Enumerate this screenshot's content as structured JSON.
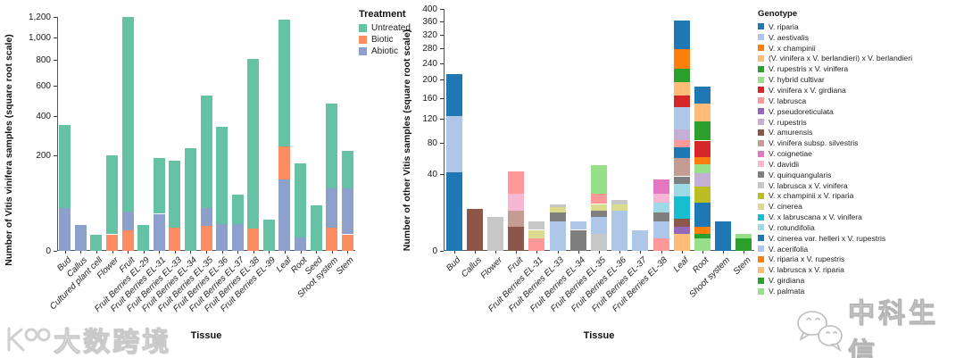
{
  "chart_data": [
    {
      "type": "bar",
      "subtype": "stacked",
      "scale": "sqrt",
      "ylabel": "Number of Vitis vinifera samples (square root scale)",
      "xlabel": "Tissue",
      "y_ticks": [
        0,
        200,
        400,
        600,
        800,
        1000,
        1200
      ],
      "y_tick_labels": [
        "0",
        "200",
        "400",
        "600",
        "800",
        "1,000",
        "1,200"
      ],
      "legend_title": "Treatment",
      "legend_items": [
        {
          "label": "Untreated",
          "color": "#66c2a5"
        },
        {
          "label": "Biotic",
          "color": "#fc8d62"
        },
        {
          "label": "Abiotic",
          "color": "#8da0cb"
        }
      ],
      "colors": {
        "Untreated": "#66c2a5",
        "Biotic": "#fc8d62",
        "Abiotic": "#8da0cb"
      },
      "bars": [
        {
          "label": "Bud",
          "segments": [
            {
              "key": "Abiotic",
              "value": 40
            },
            {
              "key": "Untreated",
              "value": 310
            }
          ]
        },
        {
          "label": "Callus",
          "segments": [
            {
              "key": "Abiotic",
              "value": 15
            }
          ]
        },
        {
          "label": "Cultured plant cell",
          "segments": [
            {
              "key": "Untreated",
              "value": 6
            }
          ]
        },
        {
          "label": "Flower",
          "segments": [
            {
              "key": "Biotic",
              "value": 6
            },
            {
              "key": "Untreated",
              "value": 194
            }
          ]
        },
        {
          "label": "Fruit",
          "segments": [
            {
              "key": "Biotic",
              "value": 9
            },
            {
              "key": "Abiotic",
              "value": 25
            },
            {
              "key": "Untreated",
              "value": 1166
            }
          ]
        },
        {
          "label": "Fruit Berries EL-29",
          "segments": [
            {
              "key": "Untreated",
              "value": 15
            }
          ]
        },
        {
          "label": "Fruit Berries EL-31",
          "segments": [
            {
              "key": "Abiotic",
              "value": 30
            },
            {
              "key": "Untreated",
              "value": 160
            }
          ]
        },
        {
          "label": "Fruit Berries EL-33",
          "segments": [
            {
              "key": "Biotic",
              "value": 12
            },
            {
              "key": "Untreated",
              "value": 168
            }
          ]
        },
        {
          "label": "Fruit Berries EL-34",
          "segments": [
            {
              "key": "Untreated",
              "value": 230
            }
          ]
        },
        {
          "label": "Fruit Berries EL-35",
          "segments": [
            {
              "key": "Biotic",
              "value": 14
            },
            {
              "key": "Abiotic",
              "value": 26
            },
            {
              "key": "Untreated",
              "value": 490
            }
          ]
        },
        {
          "label": "Fruit Berries EL-36",
          "segments": [
            {
              "key": "Abiotic",
              "value": 16
            },
            {
              "key": "Untreated",
              "value": 324
            }
          ]
        },
        {
          "label": "Fruit Berries EL-37",
          "segments": [
            {
              "key": "Abiotic",
              "value": 16
            },
            {
              "key": "Untreated",
              "value": 54
            }
          ]
        },
        {
          "label": "Fruit Berries EL-38",
          "segments": [
            {
              "key": "Biotic",
              "value": 11
            },
            {
              "key": "Untreated",
              "value": 795
            }
          ]
        },
        {
          "label": "Fruit Berries EL-39",
          "segments": [
            {
              "key": "Untreated",
              "value": 21
            }
          ]
        },
        {
          "label": "Leaf",
          "segments": [
            {
              "key": "Abiotic",
              "value": 111
            },
            {
              "key": "Biotic",
              "value": 128
            },
            {
              "key": "Untreated",
              "value": 931
            }
          ]
        },
        {
          "label": "Root",
          "segments": [
            {
              "key": "Abiotic",
              "value": 4
            },
            {
              "key": "Untreated",
              "value": 164
            }
          ]
        },
        {
          "label": "Seed",
          "segments": [
            {
              "key": "Untreated",
              "value": 46
            }
          ]
        },
        {
          "label": "Shoot system",
          "segments": [
            {
              "key": "Biotic",
              "value": 12
            },
            {
              "key": "Abiotic",
              "value": 73
            },
            {
              "key": "Untreated",
              "value": 393
            }
          ]
        },
        {
          "label": "Stem",
          "segments": [
            {
              "key": "Biotic",
              "value": 6
            },
            {
              "key": "Abiotic",
              "value": 79
            },
            {
              "key": "Untreated",
              "value": 134
            }
          ]
        }
      ]
    },
    {
      "type": "bar",
      "subtype": "stacked",
      "scale": "sqrt",
      "ylabel": "Number of other Vitis samples (square root scale)",
      "xlabel": "Tissue",
      "y_ticks": [
        0,
        40,
        80,
        120,
        160,
        200,
        240,
        280,
        320,
        360,
        400
      ],
      "y_tick_labels": [
        "0",
        "40",
        "80",
        "120",
        "160",
        "200",
        "240",
        "280",
        "320",
        "360",
        "400"
      ],
      "legend_title": "Genotype",
      "legend_items": [
        {
          "label": "V. riparia",
          "color": "#1f77b4"
        },
        {
          "label": "V. aestivalis",
          "color": "#aec7e8"
        },
        {
          "label": "V. x champinii",
          "color": "#ff7f0e"
        },
        {
          "label": "(V. vinifera x V. berlandieri) x V. berlandieri",
          "color": "#ffbb78"
        },
        {
          "label": "V. rupestris x V. vinifera",
          "color": "#2ca02c"
        },
        {
          "label": "V. hybrid cultivar",
          "color": "#98df8a"
        },
        {
          "label": "V. vinifera x V. girdiana",
          "color": "#d62728"
        },
        {
          "label": "V. labrusca",
          "color": "#ff9896"
        },
        {
          "label": "V. pseudoreticulata",
          "color": "#9467bd"
        },
        {
          "label": "V. rupestris",
          "color": "#c5b0d5"
        },
        {
          "label": "V. amurensis",
          "color": "#8c564b"
        },
        {
          "label": "V. vinifera subsp. silvestris",
          "color": "#c49c94"
        },
        {
          "label": "V. coignetiae",
          "color": "#e377c2"
        },
        {
          "label": "V. davidii",
          "color": "#f7b6d2"
        },
        {
          "label": "V. quinquangularis",
          "color": "#7f7f7f"
        },
        {
          "label": "V. labrusca x V. vinifera",
          "color": "#c7c7c7"
        },
        {
          "label": "V. x champinii x V. riparia",
          "color": "#bcbd22"
        },
        {
          "label": "V. cinerea",
          "color": "#dbdb8d"
        },
        {
          "label": "V. x labruscana x V. vinifera",
          "color": "#17becf"
        },
        {
          "label": "V. rotundifolia",
          "color": "#9edae5"
        },
        {
          "label": "V. cinerea var. helleri x V. rupestris",
          "color": "#1f77b4"
        },
        {
          "label": "V. acerifolia",
          "color": "#aec7e8"
        },
        {
          "label": "V. riparia x V. rupestris",
          "color": "#ff7f0e"
        },
        {
          "label": "V. labrusca x V. riparia",
          "color": "#ffbb78"
        },
        {
          "label": "V. girdiana",
          "color": "#2ca02c"
        },
        {
          "label": "V. palmata",
          "color": "#98df8a"
        }
      ],
      "colors": {
        "V. riparia": "#1f77b4",
        "V. aestivalis": "#aec7e8",
        "V. x champinii": "#ff7f0e",
        "(V. vinifera x V. berlandieri) x V. berlandieri": "#ffbb78",
        "V. rupestris x V. vinifera": "#2ca02c",
        "V. hybrid cultivar": "#98df8a",
        "V. vinifera x V. girdiana": "#d62728",
        "V. labrusca": "#ff9896",
        "V. pseudoreticulata": "#9467bd",
        "V. rupestris": "#c5b0d5",
        "V. amurensis": "#8c564b",
        "V. vinifera subsp. silvestris": "#c49c94",
        "V. coignetiae": "#e377c2",
        "V. davidii": "#f7b6d2",
        "V. quinquangularis": "#7f7f7f",
        "V. labrusca x V. vinifera": "#c7c7c7",
        "V. x champinii x V. riparia": "#bcbd22",
        "V. cinerea": "#dbdb8d",
        "V. x labruscana x V. vinifera": "#17becf",
        "V. rotundifolia": "#9edae5",
        "V. cinerea var. helleri x V. rupestris": "#1f77b4",
        "V. acerifolia": "#aec7e8",
        "V. riparia x V. rupestris": "#ff7f0e",
        "V. labrusca x V. riparia": "#ffbb78",
        "V. girdiana": "#2ca02c",
        "V. palmata": "#98df8a"
      },
      "bars": [
        {
          "label": "Bud",
          "segments": [
            {
              "key": "V. cinerea var. helleri x V. rupestris",
              "value": 42
            },
            {
              "key": "V. aestivalis",
              "value": 82
            },
            {
              "key": "V. riparia",
              "value": 89
            }
          ]
        },
        {
          "label": "Callus",
          "segments": [
            {
              "key": "V. amurensis",
              "value": 12
            }
          ]
        },
        {
          "label": "Flower",
          "segments": [
            {
              "key": "V. labrusca x V. vinifera",
              "value": 8
            }
          ]
        },
        {
          "label": "Fruit",
          "segments": [
            {
              "key": "V. amurensis",
              "value": 4
            },
            {
              "key": "V. vinifera subsp. silvestris",
              "value": 7
            },
            {
              "key": "V. davidii",
              "value": 11
            },
            {
              "key": "V. labrusca",
              "value": 21
            }
          ]
        },
        {
          "label": "Fruit Berries EL-31",
          "segments": [
            {
              "key": "V. labrusca",
              "value": 1
            },
            {
              "key": "V. cinerea",
              "value": 2
            },
            {
              "key": "V. labrusca x V. vinifera",
              "value": 3
            }
          ]
        },
        {
          "label": "Fruit Berries EL-33",
          "segments": [
            {
              "key": "V. aestivalis",
              "value": 6
            },
            {
              "key": "V. quinquangularis",
              "value": 4
            },
            {
              "key": "V. cinerea",
              "value": 3
            },
            {
              "key": "V. labrusca x V. vinifera",
              "value": 2
            }
          ]
        },
        {
          "label": "Fruit Berries EL-34",
          "segments": [
            {
              "key": "V. quinquangularis",
              "value": 3
            },
            {
              "key": "V. aestivalis",
              "value": 3
            }
          ]
        },
        {
          "label": "Fruit Berries EL-35",
          "segments": [
            {
              "key": "V. labrusca x V. vinifera",
              "value": 2
            },
            {
              "key": "V. aestivalis",
              "value": 6
            },
            {
              "key": "V. quinquangularis",
              "value": 3
            },
            {
              "key": "V. cinerea",
              "value": 4
            },
            {
              "key": "V. labrusca",
              "value": 7
            },
            {
              "key": "V. hybrid cultivar",
              "value": 28
            }
          ]
        },
        {
          "label": "Fruit Berries EL-36",
          "segments": [
            {
              "key": "V. aestivalis",
              "value": 11
            },
            {
              "key": "V. cinerea",
              "value": 4
            },
            {
              "key": "V. labrusca x V. vinifera",
              "value": 3
            }
          ]
        },
        {
          "label": "Fruit Berries EL-37",
          "segments": [
            {
              "key": "V. aestivalis",
              "value": 3
            }
          ]
        },
        {
          "label": "Fruit Berries EL-38",
          "segments": [
            {
              "key": "V. labrusca",
              "value": 1
            },
            {
              "key": "V. aestivalis",
              "value": 5
            },
            {
              "key": "V. quinquangularis",
              "value": 4
            },
            {
              "key": "V. rotundifolia",
              "value": 6
            },
            {
              "key": "V. davidii",
              "value": 6
            },
            {
              "key": "V. coignetiae",
              "value": 13
            }
          ]
        },
        {
          "label": "Leaf",
          "segments": [
            {
              "key": "V. labrusca x V. riparia",
              "value": 2
            },
            {
              "key": "V. pseudoreticulata",
              "value": 2
            },
            {
              "key": "V. amurensis",
              "value": 3
            },
            {
              "key": "V. x labruscana x V. vinifera",
              "value": 13
            },
            {
              "key": "V. rotundifolia",
              "value": 11
            },
            {
              "key": "V. quinquangularis",
              "value": 7
            },
            {
              "key": "V. vinifera subsp. silvestris",
              "value": 21
            },
            {
              "key": "V. cinerea var. helleri x V. rupestris",
              "value": 14
            },
            {
              "key": "V. labrusca",
              "value": 11
            },
            {
              "key": "V. rupestris",
              "value": 17
            },
            {
              "key": "V. aestivalis",
              "value": 40
            },
            {
              "key": "V. vinifera x V. girdiana",
              "value": 24
            },
            {
              "key": "(V. vinifera x V. berlandieri) x V. berlandieri",
              "value": 30
            },
            {
              "key": "V. rupestris x V. vinifera",
              "value": 32
            },
            {
              "key": "V. x champinii",
              "value": 51
            },
            {
              "key": "V. riparia",
              "value": 84
            }
          ]
        },
        {
          "label": "Root",
          "segments": [
            {
              "key": "V. palmata",
              "value": 1
            },
            {
              "key": "V. girdiana",
              "value": 1
            },
            {
              "key": "V. riparia x V. rupestris",
              "value": 2
            },
            {
              "key": "V. cinerea var. helleri x V. rupestris",
              "value": 12
            },
            {
              "key": "V. x champinii x V. riparia",
              "value": 12
            },
            {
              "key": "V. rupestris",
              "value": 13
            },
            {
              "key": "V. hybrid cultivar",
              "value": 10
            },
            {
              "key": "V. x champinii",
              "value": 9
            },
            {
              "key": "V. vinifera x V. girdiana",
              "value": 23
            },
            {
              "key": "V. rupestris x V. vinifera",
              "value": 31
            },
            {
              "key": "(V. vinifera x V. berlandieri) x V. berlandieri",
              "value": 34
            },
            {
              "key": "V. riparia",
              "value": 37
            }
          ]
        },
        {
          "label": "Shoot system",
          "segments": [
            {
              "key": "V. riparia",
              "value": 6
            }
          ]
        },
        {
          "label": "Stem",
          "segments": [
            {
              "key": "V. girdiana",
              "value": 1
            },
            {
              "key": "V. palmata",
              "value": 1
            }
          ]
        }
      ]
    }
  ],
  "watermarks": {
    "bottom_left": {
      "text": "大数跨境"
    },
    "bottom_right": {
      "text": "中科生信"
    }
  }
}
